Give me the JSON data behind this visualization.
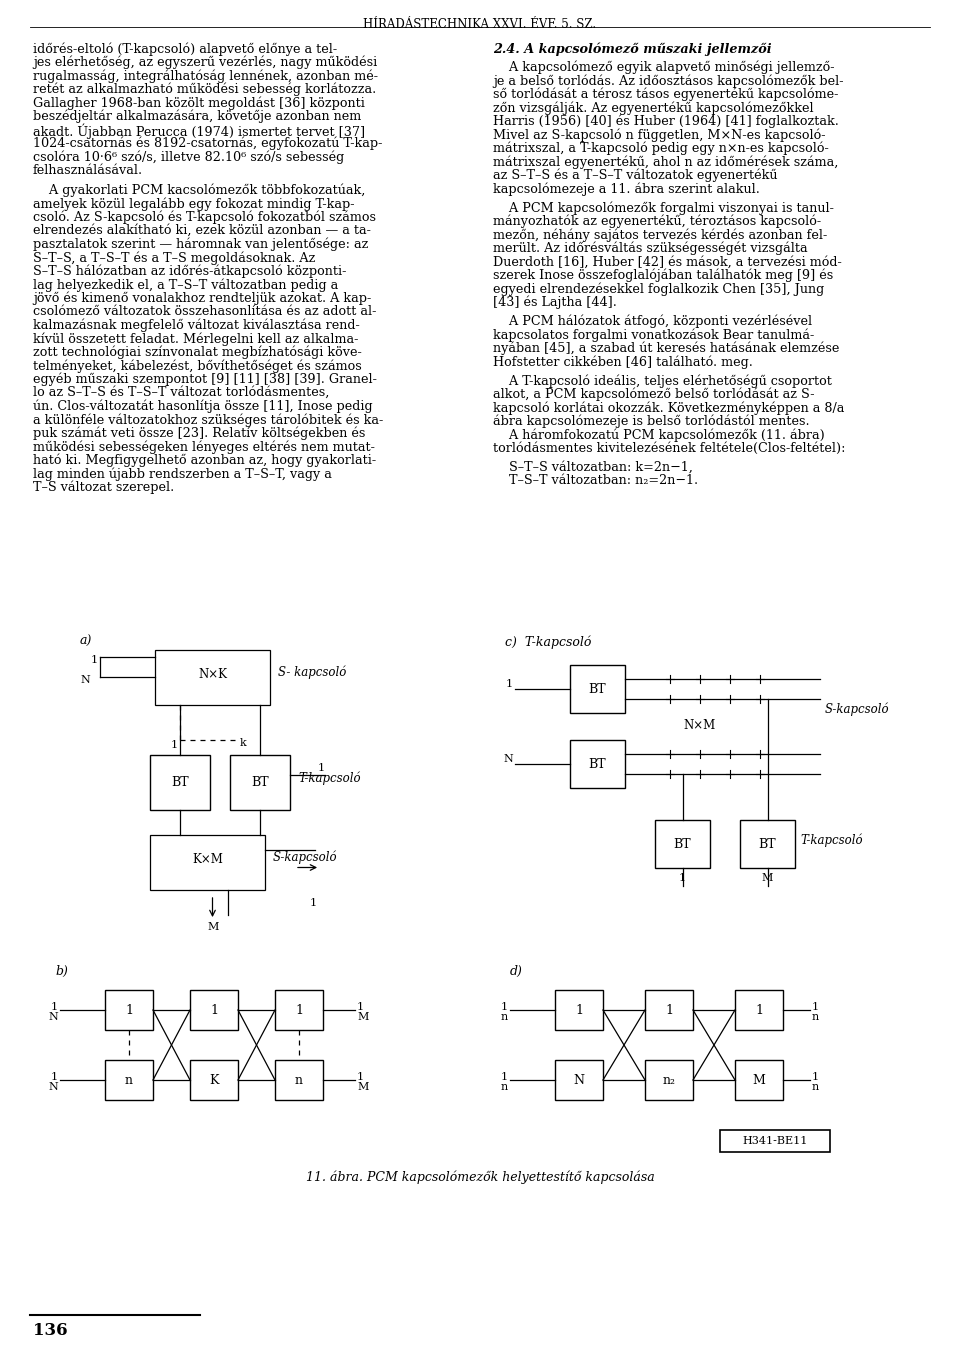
{
  "header": "HÍRADÁSTECHNIKA XXVI. ÉVF. 5. SZ.",
  "background_color": "#ffffff",
  "text_color": "#000000",
  "page_number": "136",
  "left_col": [
    "időrés-eltoló (T-kapcsoló) alapvető előnye a tel-",
    "jes elérhetőség, az egyszerű vezérlés, nagy működési",
    "rugalmasság, integrálhatóság lennének, azonban mé-",
    "retét az alkalmazható működési sebesség korlátozza.",
    "Gallagher 1968-ban közölt megoldást [36] központi",
    "beszédjeltár alkalmazására, követője azonban nem",
    "akadt. Újabban Perucca (1974) ismertet tervet [37]",
    "1024-csatornás és 8192-csatornás, egyfokozatú T-kap-",
    "csolóra 10·6⁶ szó/s, illetve 82.10⁶ szó/s sebesség",
    "felhasználásával.",
    "",
    "    A gyakorlati PCM kacsolómezők többfokozatúak,",
    "amelyek közül legalább egy fokozat mindig T-kap-",
    "csoló. Az S-kapcsoló és T-kapcsoló fokozatból számos",
    "elrendezés alakítható ki, ezek közül azonban — a ta-",
    "pasztalatok szerint — háromnak van jelentősége: az",
    "S–T–S, a T–S–T és a T–S megoldásoknak. Az",
    "S–T–S hálózatban az időrés-átkapcsoló központi-",
    "lag helyezkedik el, a T–S–T változatban pedig a",
    "jövő és kimenő vonalakhoz rendteljük azokat. A kap-",
    "csolómező változatok összehasonlítása és az adott al-",
    "kalmazásnak megfelelő változat kiválasztása rend-",
    "kívül összetett feladat. Mérlegelni kell az alkalma-",
    "zott technológiai színvonalat megbízhatósági köve-",
    "telményeket, kábelezést, bővíthetőséget és számos",
    "egyéb műszaki szempontot [9] [11] [38] [39]. Granel-",
    "lo az S–T–S és T–S–T változat torlódásmentes,",
    "ún. Clos-változatát hasonlítja össze [11], Inose pedig",
    "a különféle változatokhoz szükséges tárolóbitek és ka-",
    "puk számát veti össze [23]. Relatív költségekben és",
    "működési sebességeken lényeges eltérés nem mutat-",
    "ható ki. Megfigygelhető azonban az, hogy gyakorlati-",
    "lag minden újabb rendszerben a T–S–T, vagy a",
    "T–S változat szerepel."
  ],
  "right_col": [
    "2.4. A kapcsolómező műszaki jellemzői",
    "",
    "    A kapcsolómező egyik alapvető minőségi jellemző-",
    "je a belső torlódás. Az időosztásos kapcsolómezők bel-",
    "ső torlódását a térosz tásos egyenertékű kapcsolóme-",
    "zőn vizsgálják. Az egyenertékű kapcsolómezőkkel",
    "Harris (1956) [40] és Huber (1964) [41] foglalkoztak.",
    "Mivel az S-kapcsoló n független, M×N-es kapcsoló-",
    "mátrixszal, a T-kapcsoló pedig egy n×n-es kapcsoló-",
    "mátrixszal egyenertékű, ahol n az időmérések száma,",
    "az S–T–S és a T–S–T változatok egyenertékű",
    "kapcsolómezeje a 11. ábra szerint alakul.",
    "",
    "    A PCM kapcsolómezők forgalmi viszonyai is tanul-",
    "mányozhatók az egyenertékű, téroztásos kapcsoló-",
    "mezőn, néhány sajátos tervezés kérdés azonban fel-",
    "merült. Az időrésváltás szükségességét vizsgálta",
    "Duerdoth [16], Huber [42] és mások, a tervezési mód-",
    "szerek Inose összefoglalójában találhatók meg [9] és",
    "egyedi elrendezésekkel foglalkozik Chen [35], Jung",
    "[43] és Lajtha [44].",
    "",
    "    A PCM hálózatok átfogó, központi vezérlésével",
    "kapcsolatos forgalmi vonatkozások Bear tanulmá-",
    "nyában [45], a szabad út keresés hatásának elemzése",
    "Hofstetter cikkében [46] található. meg.",
    "",
    "    A T-kapcsoló ideális, teljes elérhetőségű csoportot",
    "alkot, a PCM kapcsolómező belső torlódását az S-",
    "kapcsoló korlátai okozzák. Következményképpen a 8/a",
    "ábra kapcsolómezeje is belső torlódástól mentes.",
    "    A háromfokozatú PCM kapcsolómezők (11. ábra)",
    "torlódásmentes kivitelezésének feltétele(Clos-feltétel):",
    "",
    "    S–T–S változatban: k=2n−1,",
    "    T–S–T változatban: n₂=2n−1."
  ],
  "diagram_caption": "11. ábra. PCM kapcsolómezők helyettestítő kapcsolása",
  "stamp": "H341-BE11",
  "right_col_italic_lines": [
    0
  ],
  "right_col_bold_italic_lines": []
}
